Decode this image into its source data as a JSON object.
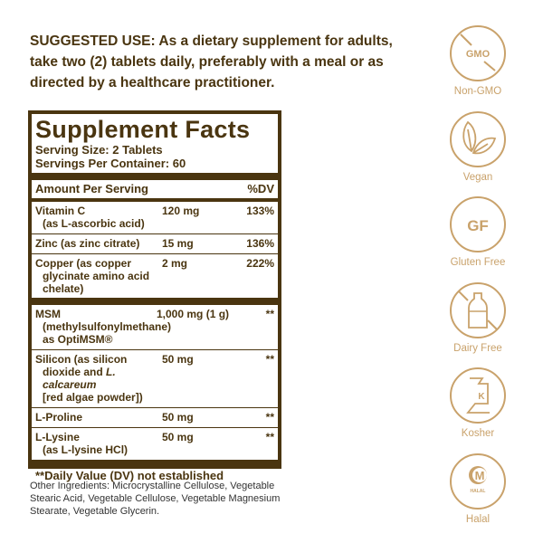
{
  "suggested_use": {
    "label": "SUGGESTED USE:",
    "text": " As a dietary supplement for adults, take two (2) tablets daily, preferably with a meal or as directed by a healthcare practitioner."
  },
  "facts": {
    "title": "Supplement Facts",
    "serving_size": "Serving Size: 2 Tablets",
    "servings_per_container": "Servings Per Container: 60",
    "header": {
      "amount": "Amount Per Serving",
      "dv": "%DV"
    },
    "rows": [
      {
        "name": "Vitamin C",
        "sub": "(as L-ascorbic acid)",
        "amount": "120 mg",
        "dv": "133%"
      },
      {
        "name": "Zinc (as zinc citrate)",
        "amount": "15 mg",
        "dv": "136%"
      },
      {
        "name": "Copper (as copper",
        "sub": "glycinate amino acid chelate)",
        "amount": "2 mg",
        "dv": "222%"
      },
      {
        "name": "MSM",
        "sub": "(methylsulfonylmethane)",
        "sub2": "as OptiMSM®",
        "amount": "1,000 mg (1 g)",
        "dv": "**"
      },
      {
        "name": "Silicon (as silicon",
        "sub": "dioxide and ",
        "sub_italic": "L. calcareum",
        "sub2": "[red algae powder])",
        "amount": "50 mg",
        "dv": "**"
      },
      {
        "name": "L-Proline",
        "amount": "50 mg",
        "dv": "**"
      },
      {
        "name": "L-Lysine",
        "sub": "(as L-lysine HCl)",
        "amount": "50 mg",
        "dv": "**"
      }
    ],
    "footnote": "**Daily Value (DV) not established"
  },
  "other_ingredients": "Other Ingredients: Microcrystalline Cellulose, Vegetable Stearic Acid, Vegetable Cellulose, Vegetable Magnesium Stearate, Vegetable Glycerin.",
  "badges": [
    {
      "icon": "no-gmo-icon",
      "text": "GMO",
      "label": "Non-GMO"
    },
    {
      "icon": "leaf-icon",
      "label": "Vegan"
    },
    {
      "icon": "gluten-free-icon",
      "text": "GF",
      "label": "Gluten Free"
    },
    {
      "icon": "no-dairy-icon",
      "label": "Dairy Free"
    },
    {
      "icon": "kosher-icon",
      "text": "K",
      "label": "Kosher"
    },
    {
      "icon": "halal-icon",
      "text": "M",
      "subtext": "HALAL",
      "label": "Halal"
    }
  ],
  "colors": {
    "text": "#4a3510",
    "badge": "#c9a26b"
  }
}
